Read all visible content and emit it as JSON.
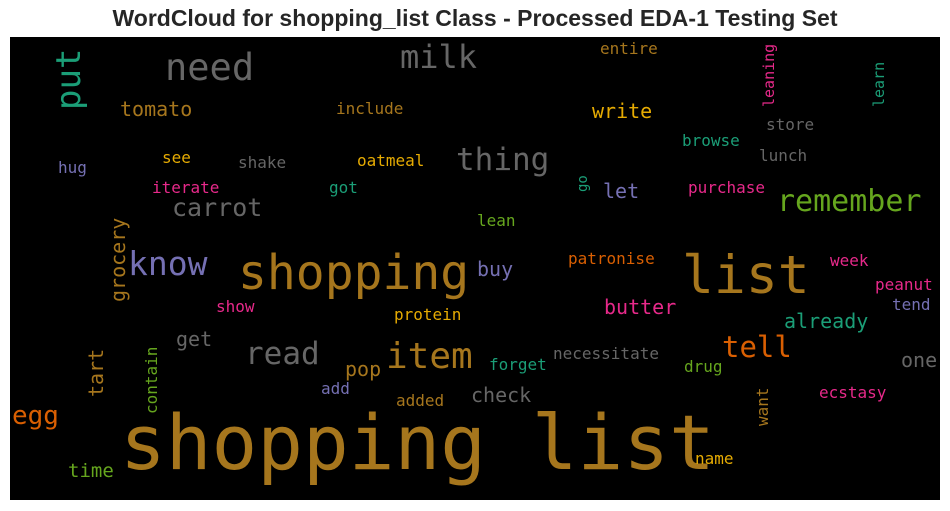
{
  "chart_data": {
    "type": "wordcloud",
    "title": "WordCloud for shopping_list Class - Processed EDA-1 Testing Set",
    "background": "#000000",
    "palette": [
      "#a6761d",
      "#666666",
      "#1b9e77",
      "#7570b3",
      "#66a61e",
      "#e6ab02",
      "#d95f02",
      "#e7298a"
    ],
    "words": [
      {
        "text": "shopping list",
        "color": "#a6761d",
        "vertical": false
      },
      {
        "text": "shopping",
        "color": "#a6761d",
        "vertical": false
      },
      {
        "text": "list",
        "color": "#a6761d",
        "vertical": false
      },
      {
        "text": "item",
        "color": "#a6761d",
        "vertical": false
      },
      {
        "text": "need",
        "color": "#666666",
        "vertical": false
      },
      {
        "text": "milk",
        "color": "#666666",
        "vertical": false
      },
      {
        "text": "put",
        "color": "#1b9e77",
        "vertical": true
      },
      {
        "text": "know",
        "color": "#7570b3",
        "vertical": false
      },
      {
        "text": "read",
        "color": "#666666",
        "vertical": false
      },
      {
        "text": "thing",
        "color": "#666666",
        "vertical": false
      },
      {
        "text": "remember",
        "color": "#66a61e",
        "vertical": false
      },
      {
        "text": "tell",
        "color": "#d95f02",
        "vertical": false
      },
      {
        "text": "carrot",
        "color": "#666666",
        "vertical": false
      },
      {
        "text": "egg",
        "color": "#d95f02",
        "vertical": false
      },
      {
        "text": "tomato",
        "color": "#a6761d",
        "vertical": false
      },
      {
        "text": "write",
        "color": "#e6ab02",
        "vertical": false
      },
      {
        "text": "grocery",
        "color": "#a6761d",
        "vertical": true
      },
      {
        "text": "buy",
        "color": "#7570b3",
        "vertical": false
      },
      {
        "text": "butter",
        "color": "#e7298a",
        "vertical": false
      },
      {
        "text": "already",
        "color": "#1b9e77",
        "vertical": false
      },
      {
        "text": "pop",
        "color": "#a6761d",
        "vertical": false
      },
      {
        "text": "tart",
        "color": "#a6761d",
        "vertical": true
      },
      {
        "text": "check",
        "color": "#666666",
        "vertical": false
      },
      {
        "text": "one",
        "color": "#666666",
        "vertical": false
      },
      {
        "text": "get",
        "color": "#666666",
        "vertical": false
      },
      {
        "text": "let",
        "color": "#7570b3",
        "vertical": false
      },
      {
        "text": "time",
        "color": "#66a61e",
        "vertical": false
      },
      {
        "text": "include",
        "color": "#a6761d",
        "vertical": false
      },
      {
        "text": "entire",
        "color": "#a6761d",
        "vertical": false
      },
      {
        "text": "leaning",
        "color": "#e7298a",
        "vertical": true
      },
      {
        "text": "learn",
        "color": "#1b9e77",
        "vertical": true
      },
      {
        "text": "store",
        "color": "#666666",
        "vertical": false
      },
      {
        "text": "browse",
        "color": "#1b9e77",
        "vertical": false
      },
      {
        "text": "lunch",
        "color": "#666666",
        "vertical": false
      },
      {
        "text": "hug",
        "color": "#7570b3",
        "vertical": false
      },
      {
        "text": "see",
        "color": "#e6ab02",
        "vertical": false
      },
      {
        "text": "shake",
        "color": "#666666",
        "vertical": false
      },
      {
        "text": "oatmeal",
        "color": "#e6ab02",
        "vertical": false
      },
      {
        "text": "go",
        "color": "#1b9e77",
        "vertical": true
      },
      {
        "text": "iterate",
        "color": "#e7298a",
        "vertical": false
      },
      {
        "text": "got",
        "color": "#1b9e77",
        "vertical": false
      },
      {
        "text": "purchase",
        "color": "#e7298a",
        "vertical": false
      },
      {
        "text": "lean",
        "color": "#66a61e",
        "vertical": false
      },
      {
        "text": "patronise",
        "color": "#d95f02",
        "vertical": false
      },
      {
        "text": "week",
        "color": "#e7298a",
        "vertical": false
      },
      {
        "text": "peanut",
        "color": "#e7298a",
        "vertical": false
      },
      {
        "text": "tend",
        "color": "#7570b3",
        "vertical": false
      },
      {
        "text": "show",
        "color": "#e7298a",
        "vertical": false
      },
      {
        "text": "protein",
        "color": "#e6ab02",
        "vertical": false
      },
      {
        "text": "contain",
        "color": "#66a61e",
        "vertical": true
      },
      {
        "text": "forget",
        "color": "#1b9e77",
        "vertical": false
      },
      {
        "text": "necessitate",
        "color": "#666666",
        "vertical": false
      },
      {
        "text": "drug",
        "color": "#66a61e",
        "vertical": false
      },
      {
        "text": "want",
        "color": "#a6761d",
        "vertical": true
      },
      {
        "text": "ecstasy",
        "color": "#e7298a",
        "vertical": false
      },
      {
        "text": "add",
        "color": "#7570b3",
        "vertical": false
      },
      {
        "text": "added",
        "color": "#a6761d",
        "vertical": false
      },
      {
        "text": "name",
        "color": "#e6ab02",
        "vertical": false
      }
    ]
  }
}
